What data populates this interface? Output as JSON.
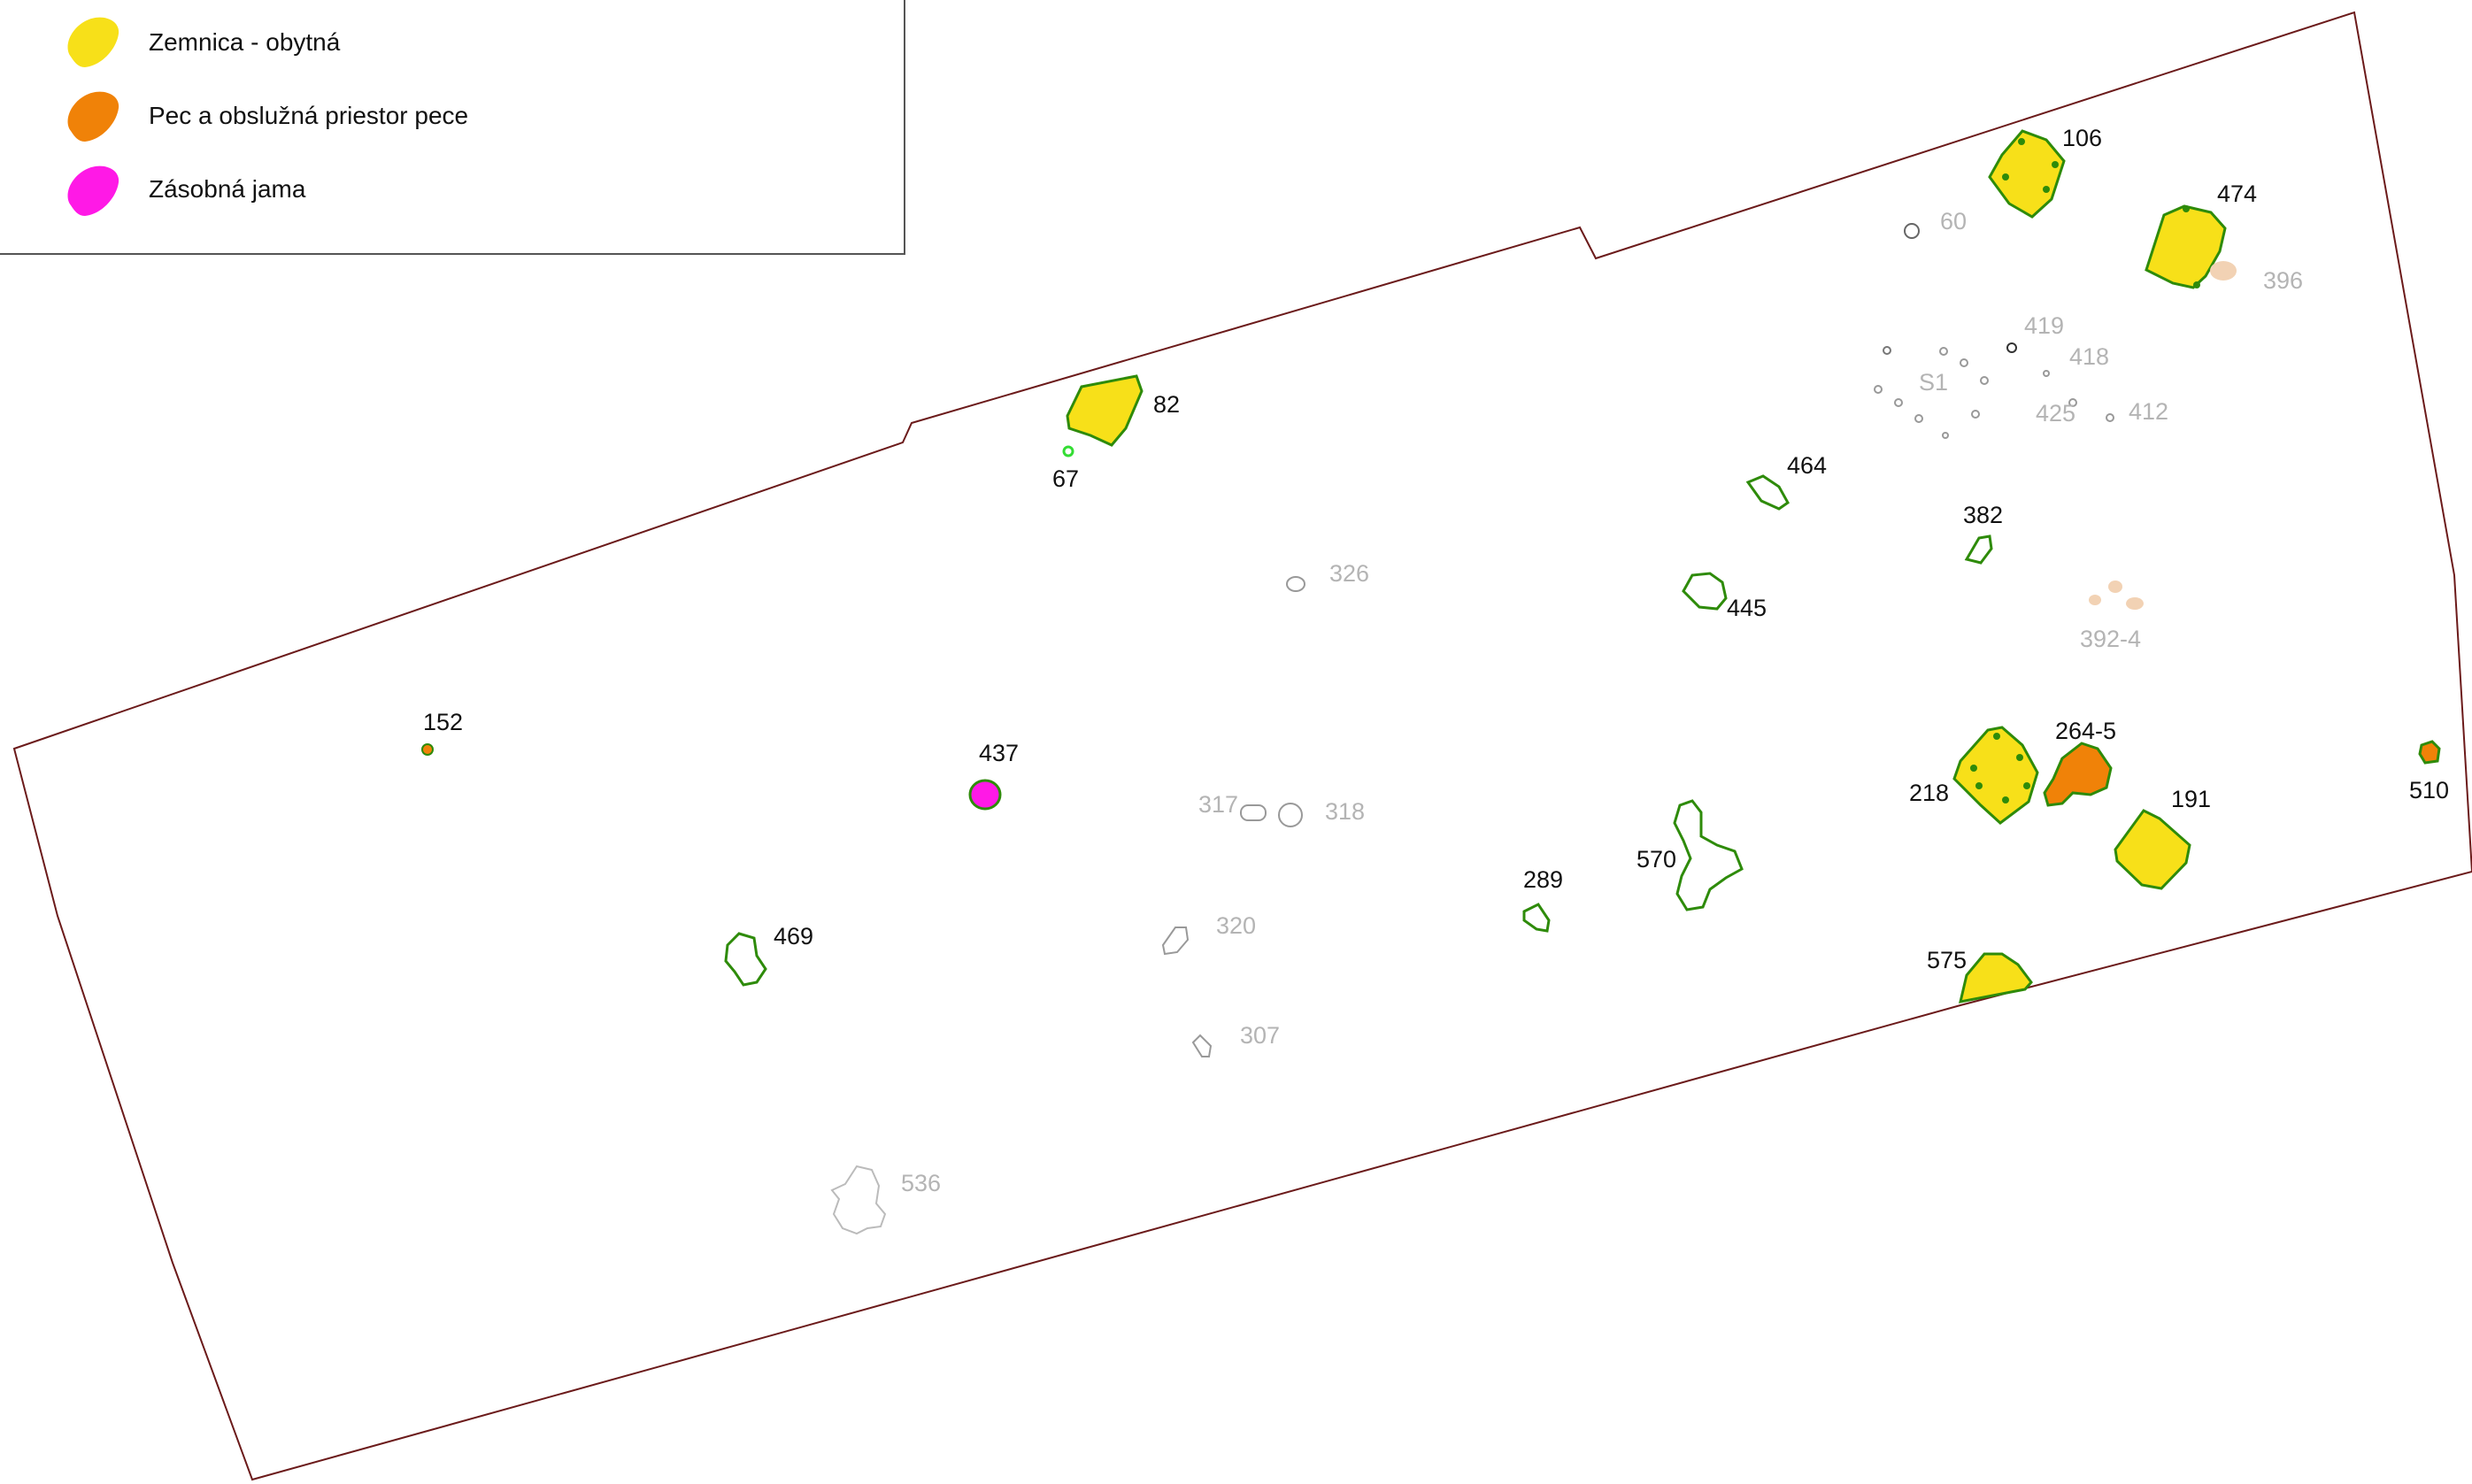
{
  "legend": {
    "items": [
      {
        "label": "Zemnica - obytná",
        "color": "#f7e019"
      },
      {
        "label": "Pec a obslužná priestor pece",
        "color": "#f08208"
      },
      {
        "label": "Zásobná jama",
        "color": "#ff19e6"
      }
    ]
  },
  "colors": {
    "boundary": "#6b1a1a",
    "outline_green": "#2e8b0a",
    "outline_grey": "#b4b4b4",
    "light_green": "#33dd33",
    "beige": "#f2d2b4"
  },
  "features": {
    "f106": "106",
    "f474": "474",
    "f60": "60",
    "f396": "396",
    "f419": "419",
    "f418": "418",
    "fS1": "S1",
    "f425": "425",
    "f412": "412",
    "f82": "82",
    "f67": "67",
    "f464": "464",
    "f382": "382",
    "f326": "326",
    "f445": "445",
    "f392_4": "392-4",
    "f152": "152",
    "f437": "437",
    "f317": "317",
    "f318": "318",
    "f264_5": "264-5",
    "f218": "218",
    "f191": "191",
    "f510": "510",
    "f289": "289",
    "f570": "570",
    "f469": "469",
    "f320": "320",
    "f575": "575",
    "f307": "307",
    "f536": "536"
  }
}
